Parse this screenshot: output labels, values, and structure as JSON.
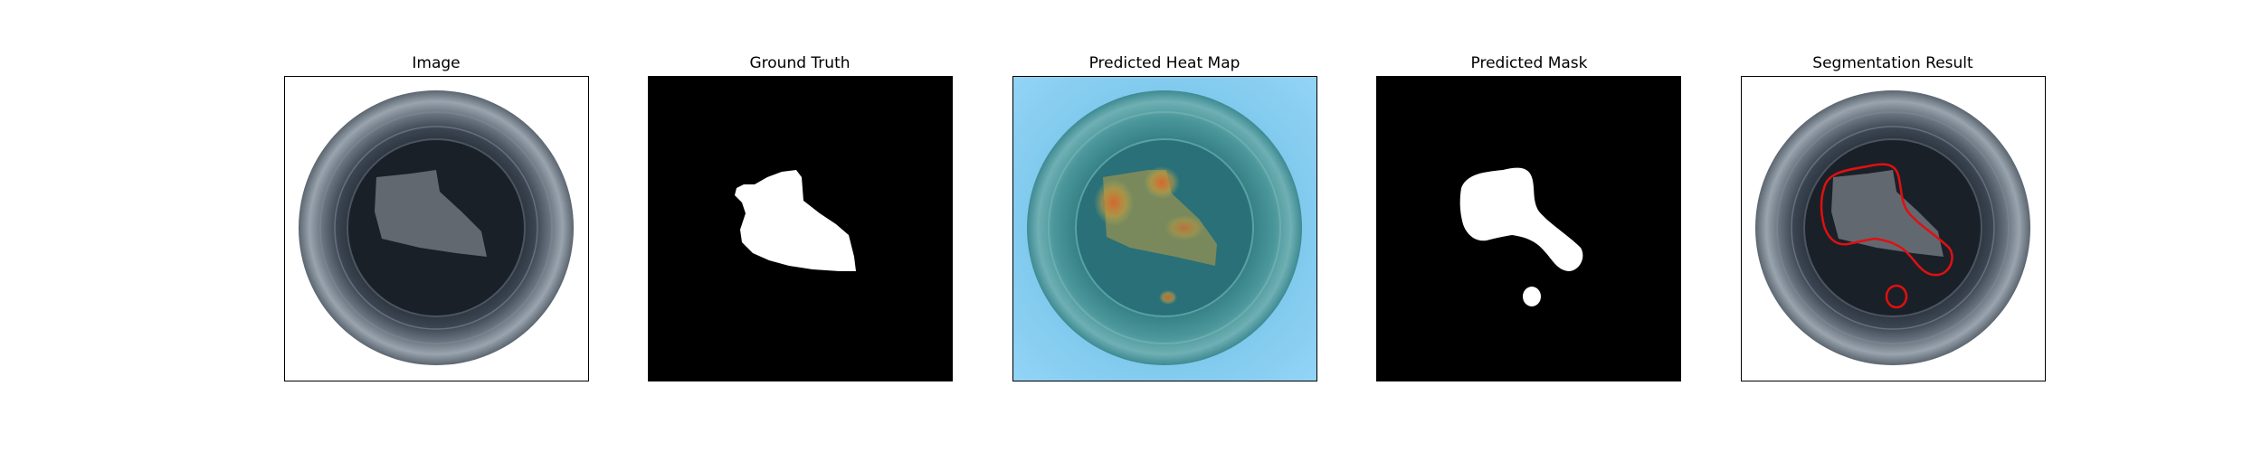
{
  "figure": {
    "panels": [
      {
        "title": "Image",
        "kind": "input-image"
      },
      {
        "title": "Ground Truth",
        "kind": "binary-mask"
      },
      {
        "title": "Predicted Heat Map",
        "kind": "heatmap-overlay"
      },
      {
        "title": "Predicted Mask",
        "kind": "binary-mask"
      },
      {
        "title": "Segmentation Result",
        "kind": "contour-overlay"
      }
    ],
    "colors": {
      "mask_foreground": "#ffffff",
      "mask_background": "#000000",
      "heatmap_low": "#8fd3f7",
      "heatmap_high": "#e0602a",
      "contour": "#e01010",
      "frame": "#000000"
    }
  }
}
